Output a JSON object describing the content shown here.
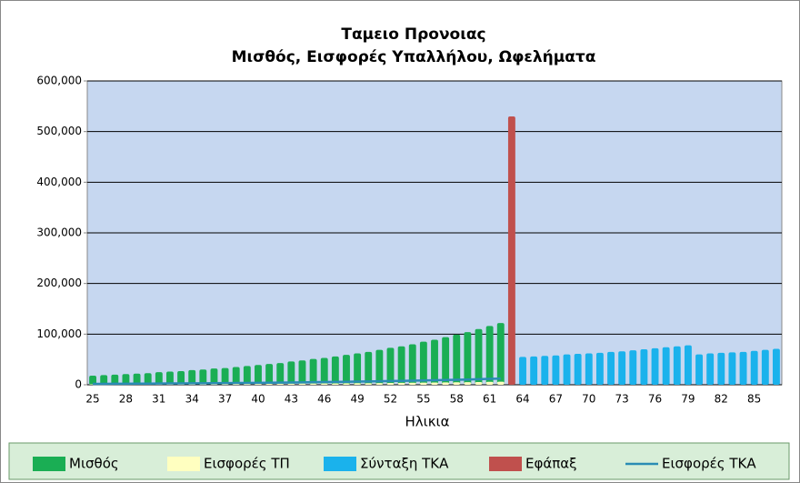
{
  "chart_data": {
    "type": "bar",
    "title": "Ταμειο Προνοιας",
    "subtitle": "Μισθός, Εισφορές Υπαλλήλου, Ωφελήματα",
    "x_label": "Ηλικια",
    "categories": [
      25,
      null,
      null,
      28,
      null,
      null,
      31,
      null,
      null,
      34,
      null,
      null,
      37,
      null,
      null,
      40,
      null,
      null,
      43,
      null,
      null,
      46,
      null,
      null,
      49,
      null,
      null,
      52,
      null,
      null,
      55,
      null,
      null,
      58,
      null,
      null,
      61,
      null,
      null,
      64,
      null,
      null,
      67,
      null,
      null,
      70,
      null,
      null,
      73,
      null,
      null,
      76,
      null,
      null,
      79,
      null,
      null,
      82,
      null,
      null,
      85,
      null,
      null
    ],
    "ylim": [
      0,
      600000
    ],
    "yticks": [
      0,
      {
        "value": 100000,
        "label": "100,000"
      },
      {
        "value": 200000,
        "label": "200,000"
      },
      {
        "value": 300000,
        "label": "300,000"
      },
      {
        "value": 400000,
        "label": "400,000"
      },
      {
        "value": 500000,
        "label": "500,000"
      },
      {
        "value": 600000,
        "label": "600,000"
      }
    ],
    "grid": true,
    "legend": "bottom",
    "series": [
      {
        "name": "Μισθός",
        "color": "#1aae54",
        "kind": "bar",
        "values": [
          18000,
          19000,
          20000,
          21000,
          22000,
          23000,
          25000,
          26000,
          27000,
          29000,
          30000,
          32000,
          33000,
          35000,
          37000,
          39000,
          41000,
          43000,
          46000,
          48000,
          51000,
          53000,
          56000,
          59000,
          62000,
          65000,
          69000,
          73000,
          76000,
          80000,
          85000,
          89000,
          94000,
          99000,
          104000,
          110000,
          116000,
          122000,
          null,
          null,
          null,
          null,
          null,
          null,
          null,
          null,
          null,
          null,
          null,
          null,
          null,
          null,
          null,
          null,
          null,
          null,
          null,
          null,
          null,
          null,
          null,
          null,
          null
        ]
      },
      {
        "name": "Εισφορές ΤΠ",
        "color": "#ffffc0",
        "kind": "bar",
        "values": [
          900,
          950,
          1000,
          1050,
          1100,
          1150,
          1250,
          1300,
          1350,
          1450,
          1500,
          1600,
          1650,
          1750,
          1850,
          1950,
          2050,
          2150,
          2300,
          2400,
          2550,
          2650,
          2800,
          2950,
          3100,
          3250,
          3450,
          3650,
          3800,
          4000,
          4250,
          4450,
          4700,
          4950,
          5200,
          5500,
          5800,
          6100,
          null,
          null,
          null,
          null,
          null,
          null,
          null,
          null,
          null,
          null,
          null,
          null,
          null,
          null,
          null,
          null,
          null,
          null,
          null,
          null,
          null,
          null,
          null,
          null,
          null
        ]
      },
      {
        "name": "Σύνταξη ΤΚΑ",
        "color": "#1ab2ec",
        "kind": "bar",
        "values": [
          null,
          null,
          null,
          null,
          null,
          null,
          null,
          null,
          null,
          null,
          null,
          null,
          null,
          null,
          null,
          null,
          null,
          null,
          null,
          null,
          null,
          null,
          null,
          null,
          null,
          null,
          null,
          null,
          null,
          null,
          null,
          null,
          null,
          null,
          null,
          null,
          null,
          null,
          null,
          55000,
          56000,
          57000,
          58000,
          60000,
          61000,
          62000,
          63000,
          65000,
          66000,
          68000,
          70000,
          72000,
          74000,
          76000,
          78000,
          60000,
          62000,
          63000,
          64000,
          65000,
          67000,
          69000,
          71000
        ]
      },
      {
        "name": "Εφάπαξ",
        "color": "#c0504d",
        "kind": "bar",
        "values": [
          null,
          null,
          null,
          null,
          null,
          null,
          null,
          null,
          null,
          null,
          null,
          null,
          null,
          null,
          null,
          null,
          null,
          null,
          null,
          null,
          null,
          null,
          null,
          null,
          null,
          null,
          null,
          null,
          null,
          null,
          null,
          null,
          null,
          null,
          null,
          null,
          null,
          null,
          530000,
          null,
          null,
          null,
          null,
          null,
          null,
          null,
          null,
          null,
          null,
          null,
          null,
          null,
          null,
          null,
          null,
          null,
          null,
          null,
          null,
          null,
          null,
          null,
          null
        ]
      },
      {
        "name": "Εισφορές ΤΚΑ",
        "color": "#2a8cb4",
        "kind": "line",
        "values": [
          1800,
          1900,
          2000,
          2100,
          2200,
          2300,
          2500,
          2600,
          2700,
          2900,
          3000,
          3200,
          3300,
          3500,
          3700,
          3900,
          4100,
          4300,
          4600,
          4800,
          5100,
          5300,
          5600,
          5900,
          6200,
          6500,
          6900,
          7300,
          7600,
          8000,
          8500,
          8900,
          9400,
          9900,
          10400,
          11000,
          11600,
          12200,
          null,
          null,
          null,
          null,
          null,
          null,
          null,
          null,
          null,
          null,
          null,
          null,
          null,
          null,
          null,
          null,
          null,
          null,
          null,
          null,
          null,
          null,
          null,
          null,
          null
        ]
      }
    ]
  }
}
